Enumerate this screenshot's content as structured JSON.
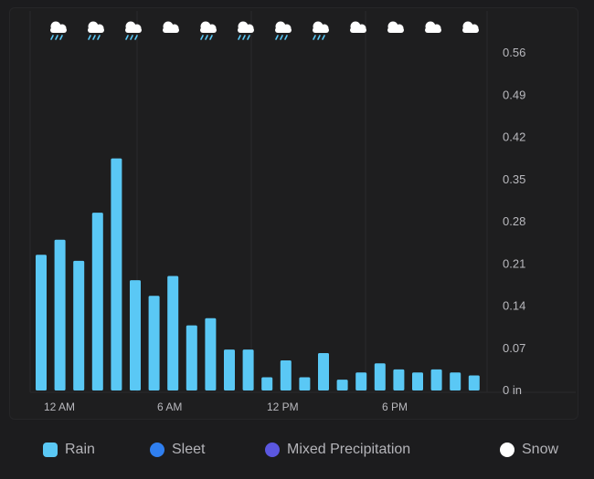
{
  "legend": [
    {
      "label": "Rain",
      "color": "#5ac8f5",
      "shape": "square"
    },
    {
      "label": "Sleet",
      "color": "#2f7ff0",
      "shape": "circle"
    },
    {
      "label": "Mixed Precipitation",
      "color": "#5b57e0",
      "shape": "circle"
    },
    {
      "label": "Snow",
      "color": "#ffffff",
      "shape": "circle"
    }
  ],
  "weather_icons": [
    "rain-cloud-icon",
    "rain-cloud-icon",
    "rain-cloud-icon",
    "cloud-icon",
    "rain-cloud-icon",
    "rain-cloud-icon",
    "rain-cloud-icon",
    "rain-cloud-icon",
    "cloud-icon",
    "cloud-icon",
    "cloud-icon",
    "cloud-icon"
  ],
  "chart_data": {
    "type": "bar",
    "y_tick_labels": [
      "0.56",
      "0.49",
      "0.42",
      "0.35",
      "0.28",
      "0.21",
      "0.14",
      "0.07",
      "0 in"
    ],
    "x_tick_labels": [
      "12 AM",
      "6 AM",
      "12 PM",
      "6 PM"
    ],
    "ylim": [
      0,
      0.56
    ],
    "bar_color": "#5ac8f5",
    "series": [
      {
        "name": "Rain",
        "values": [
          0.225,
          0.25,
          0.215,
          0.295,
          0.385,
          0.183,
          0.157,
          0.19,
          0.108,
          0.12,
          0.068,
          0.068,
          0.022,
          0.05,
          0.022,
          0.062,
          0.018,
          0.03,
          0.045,
          0.035,
          0.03,
          0.035,
          0.03,
          0.025
        ]
      }
    ]
  }
}
